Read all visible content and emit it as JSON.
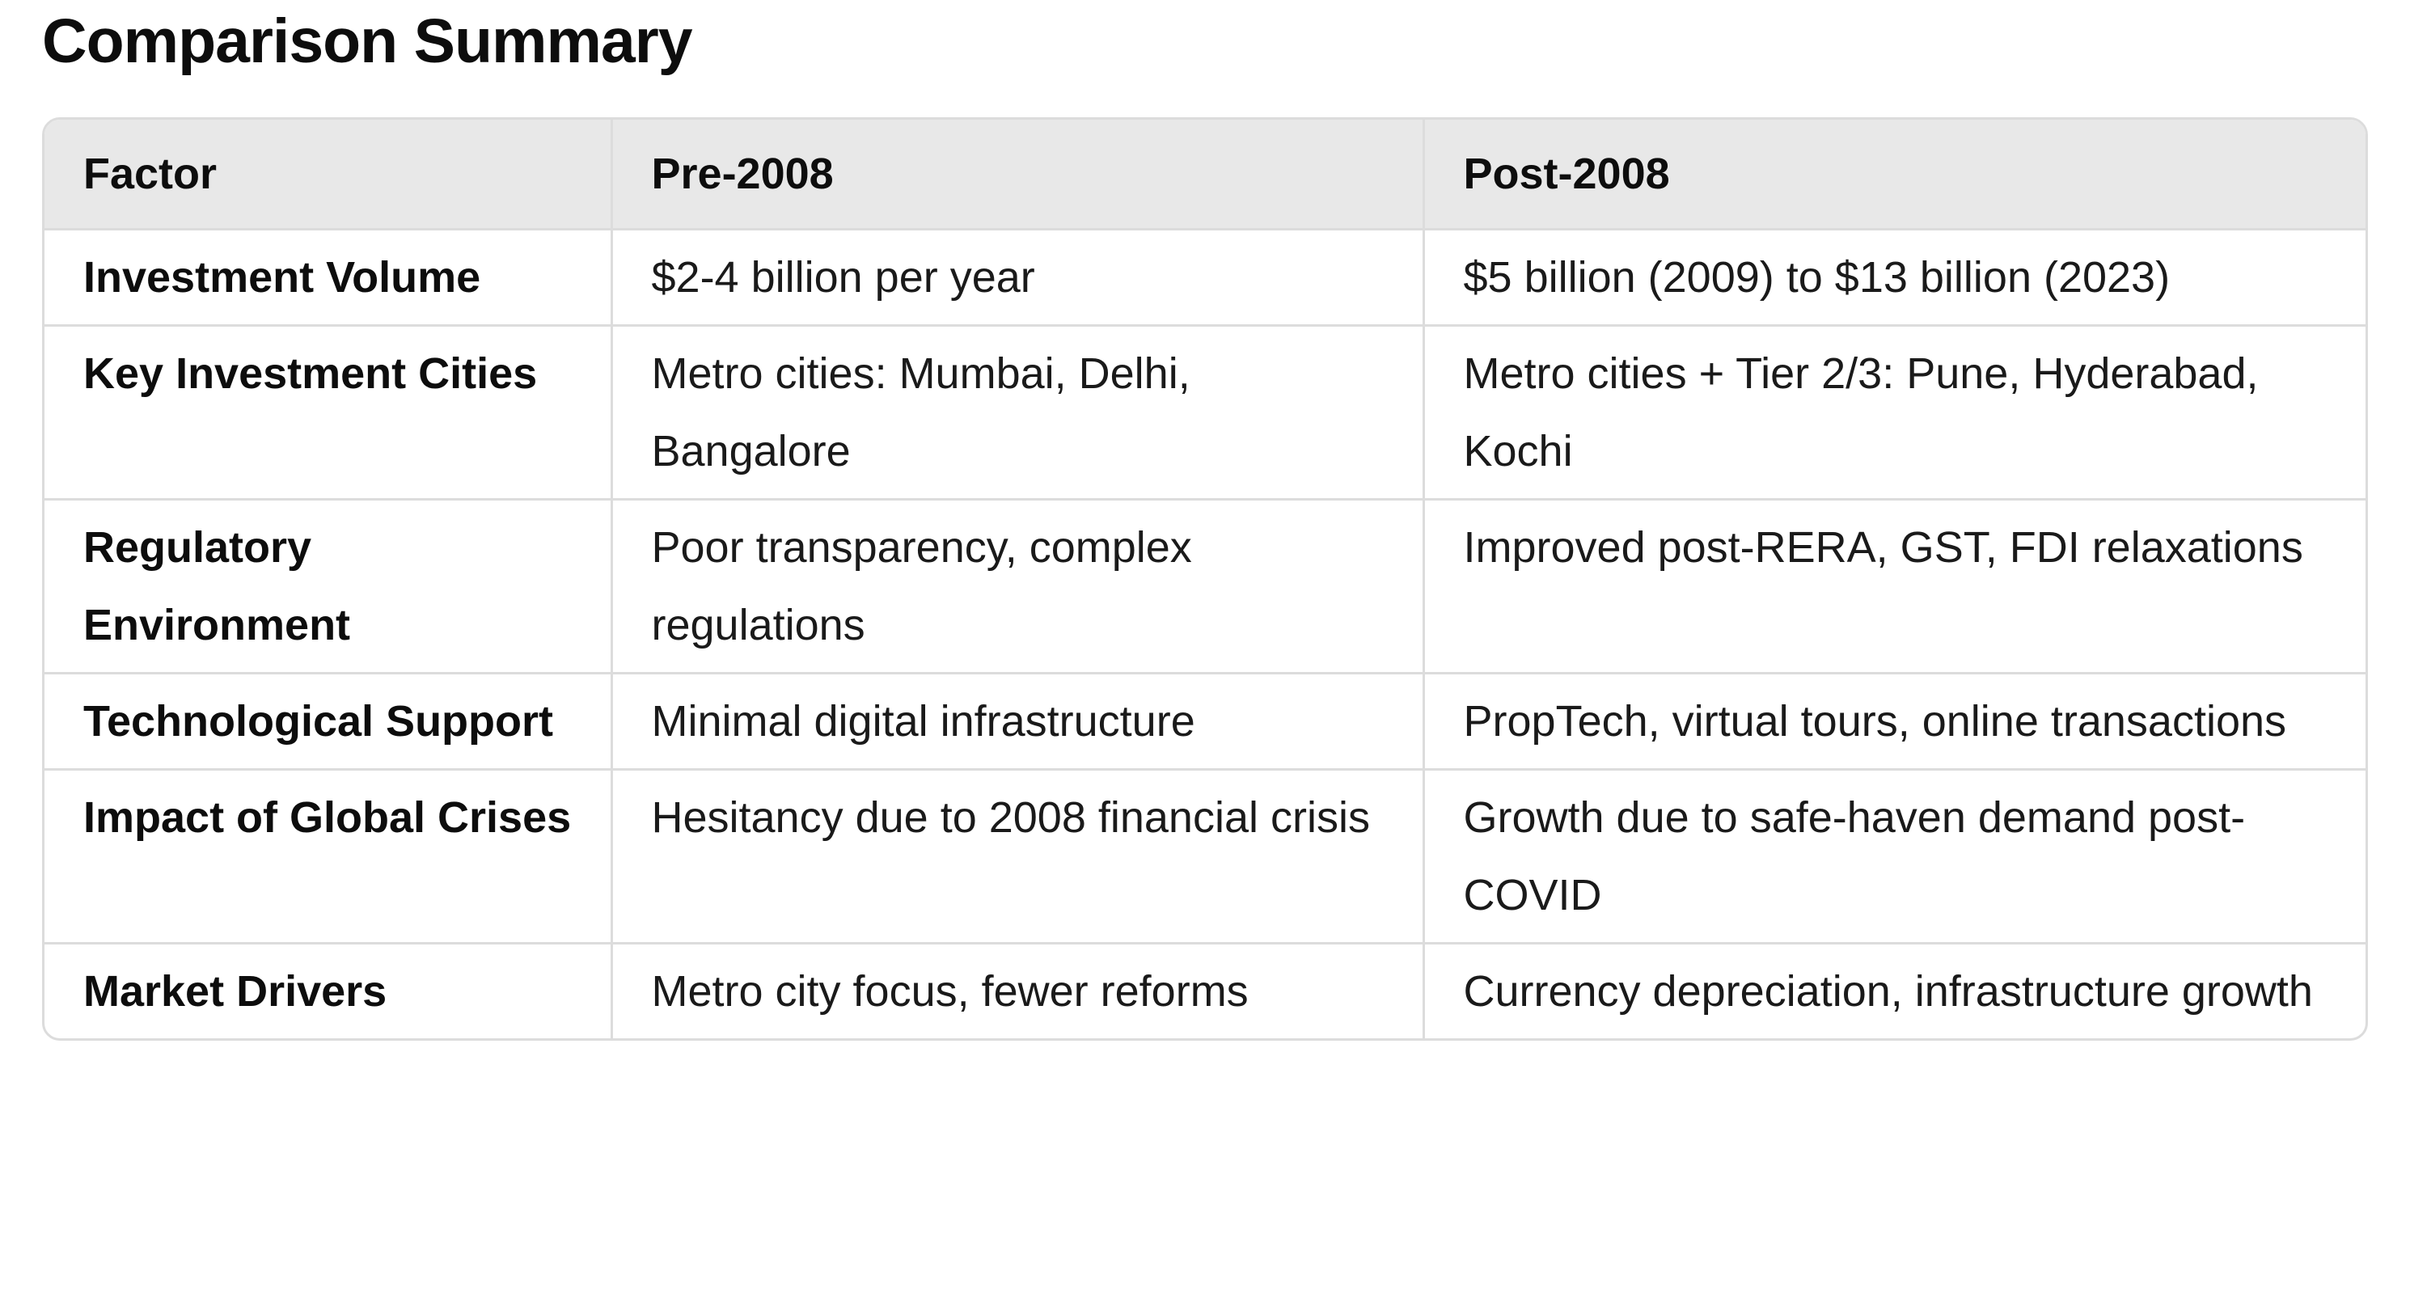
{
  "page_title": "Comparison Summary",
  "table": {
    "headers": [
      "Factor",
      "Pre-2008",
      "Post-2008"
    ],
    "rows": [
      [
        "Investment Volume",
        "$2-4 billion per year",
        "$5 billion (2009) to $13 billion (2023)"
      ],
      [
        "Key Investment Cities",
        "Metro cities: Mumbai, Delhi, Bangalore",
        "Metro cities + Tier 2/3: Pune, Hyderabad, Kochi"
      ],
      [
        "Regulatory Environment",
        "Poor transparency, complex regulations",
        "Improved post-RERA, GST, FDI relaxations"
      ],
      [
        "Technological Support",
        "Minimal digital infrastructure",
        "PropTech, virtual tours, online transactions"
      ],
      [
        "Impact of Global Crises",
        "Hesitancy due to 2008 financial crisis",
        "Growth due to safe-haven demand post-COVID"
      ],
      [
        "Market Drivers",
        "Metro city focus, fewer reforms",
        "Currency depreciation, infrastructure growth"
      ]
    ]
  }
}
